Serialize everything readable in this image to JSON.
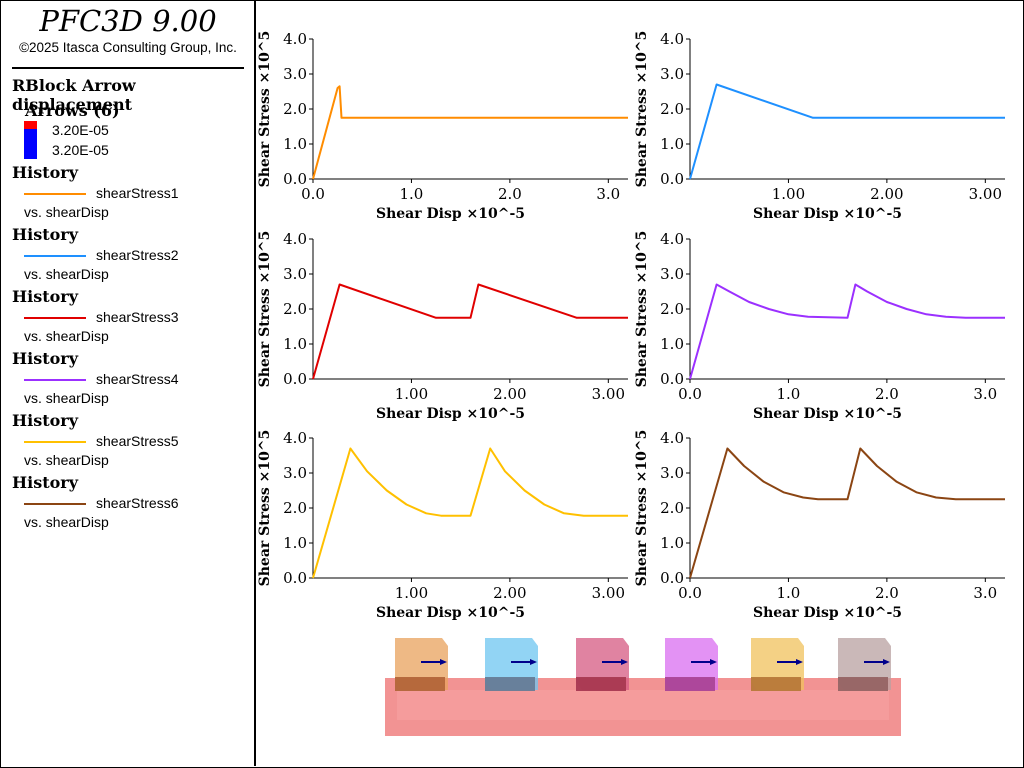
{
  "app": {
    "title": "PFC3D 9.00",
    "copyright": "©2025 Itasca Consulting Group, Inc."
  },
  "legend": {
    "plot_title": "RBlock Arrow displacement",
    "arrows": {
      "heading": "Arrows (6)",
      "max_value": "3.20E-05",
      "min_value": "3.20E-05",
      "colors": [
        "#ff0000",
        "#0000ff"
      ]
    },
    "histories": [
      {
        "heading": "History",
        "name": "shearStress1",
        "vs": "vs. shearDisp",
        "color": "#ff8c00"
      },
      {
        "heading": "History",
        "name": "shearStress2",
        "vs": "vs. shearDisp",
        "color": "#1e90ff"
      },
      {
        "heading": "History",
        "name": "shearStress3",
        "vs": "vs. shearDisp",
        "color": "#e00000"
      },
      {
        "heading": "History",
        "name": "shearStress4",
        "vs": "vs. shearDisp",
        "color": "#9b30ff"
      },
      {
        "heading": "History",
        "name": "shearStress5",
        "vs": "vs. shearDisp",
        "color": "#ffc000"
      },
      {
        "heading": "History",
        "name": "shearStress6",
        "vs": "vs. shearDisp",
        "color": "#8b4513"
      }
    ]
  },
  "chart_data": [
    {
      "type": "line",
      "xlabel": "Shear Disp ×10^-5",
      "ylabel": "Shear Stress ×10^5",
      "xticks": [
        "0.0",
        "1.0",
        "2.0",
        "3.0"
      ],
      "yticks": [
        "0.0",
        "1.0",
        "2.0",
        "3.0",
        "4.0"
      ],
      "xlim": [
        0,
        3.2
      ],
      "ylim": [
        0,
        4.0
      ],
      "color": "#ff8c00",
      "x": [
        0,
        0.25,
        0.27,
        0.29,
        3.2
      ],
      "y": [
        0,
        2.6,
        2.65,
        1.75,
        1.75
      ]
    },
    {
      "type": "line",
      "xlabel": "Shear Disp ×10^-5",
      "ylabel": "Shear Stress ×10^5",
      "xticks": [
        "1.00",
        "2.00",
        "3.00"
      ],
      "yticks": [
        "0.0",
        "1.0",
        "2.0",
        "3.0",
        "4.0"
      ],
      "xlim": [
        0,
        3.2
      ],
      "ylim": [
        0,
        4.0
      ],
      "color": "#1e90ff",
      "x": [
        0,
        0.27,
        1.25,
        3.2
      ],
      "y": [
        0,
        2.7,
        1.75,
        1.75
      ]
    },
    {
      "type": "line",
      "xlabel": "Shear Disp ×10^-5",
      "ylabel": "Shear Stress ×10^5",
      "xticks": [
        "1.00",
        "2.00",
        "3.00"
      ],
      "yticks": [
        "0.0",
        "1.0",
        "2.0",
        "3.0",
        "4.0"
      ],
      "xlim": [
        0,
        3.2
      ],
      "ylim": [
        0,
        4.0
      ],
      "color": "#e00000",
      "x": [
        0,
        0.27,
        1.25,
        1.6,
        1.68,
        2.68,
        3.2
      ],
      "y": [
        0,
        2.7,
        1.75,
        1.75,
        2.7,
        1.75,
        1.75
      ]
    },
    {
      "type": "line",
      "xlabel": "Shear Disp ×10^-5",
      "ylabel": "Shear Stress ×10^5",
      "xticks": [
        "0.0",
        "1.0",
        "2.0",
        "3.0"
      ],
      "yticks": [
        "0.0",
        "1.0",
        "2.0",
        "3.0",
        "4.0"
      ],
      "xlim": [
        0,
        3.2
      ],
      "ylim": [
        0,
        4.0
      ],
      "color": "#9b30ff",
      "x": [
        0,
        0.27,
        0.4,
        0.6,
        0.8,
        1.0,
        1.2,
        1.6,
        1.68,
        1.8,
        2.0,
        2.2,
        2.4,
        2.6,
        2.8,
        3.2
      ],
      "y": [
        0,
        2.7,
        2.5,
        2.2,
        2.0,
        1.85,
        1.78,
        1.75,
        2.7,
        2.5,
        2.2,
        2.0,
        1.85,
        1.78,
        1.75,
        1.75
      ]
    },
    {
      "type": "line",
      "xlabel": "Shear Disp ×10^-5",
      "ylabel": "Shear Stress ×10^5",
      "xticks": [
        "1.00",
        "2.00",
        "3.00"
      ],
      "yticks": [
        "0.0",
        "1.0",
        "2.0",
        "3.0",
        "4.0"
      ],
      "xlim": [
        0,
        3.2
      ],
      "ylim": [
        0,
        4.0
      ],
      "color": "#ffc000",
      "x": [
        0,
        0.38,
        0.55,
        0.75,
        0.95,
        1.15,
        1.3,
        1.6,
        1.8,
        1.95,
        2.15,
        2.35,
        2.55,
        2.75,
        3.2
      ],
      "y": [
        0,
        3.7,
        3.05,
        2.5,
        2.1,
        1.85,
        1.78,
        1.78,
        3.7,
        3.05,
        2.5,
        2.1,
        1.85,
        1.78,
        1.78
      ]
    },
    {
      "type": "line",
      "xlabel": "Shear Disp ×10^-5",
      "ylabel": "Shear Stress ×10^5",
      "xticks": [
        "0.0",
        "1.0",
        "2.0",
        "3.0"
      ],
      "yticks": [
        "0.0",
        "1.0",
        "2.0",
        "3.0",
        "4.0"
      ],
      "xlim": [
        0,
        3.2
      ],
      "ylim": [
        0,
        4.0
      ],
      "color": "#8b4513",
      "x": [
        0,
        0.38,
        0.55,
        0.75,
        0.95,
        1.15,
        1.3,
        1.6,
        1.73,
        1.9,
        2.1,
        2.3,
        2.5,
        2.7,
        3.2
      ],
      "y": [
        0,
        3.7,
        3.2,
        2.75,
        2.45,
        2.3,
        2.25,
        2.25,
        3.7,
        3.2,
        2.75,
        2.45,
        2.3,
        2.25,
        2.25
      ]
    }
  ],
  "model_view": {
    "block_colors": [
      "#e8a25c",
      "#6ec6f0",
      "#d65a82",
      "#d96df0",
      "#f0c15c",
      "#b8a0a0"
    ],
    "base_color": "#f07878",
    "arrow_color": "#00008b"
  }
}
